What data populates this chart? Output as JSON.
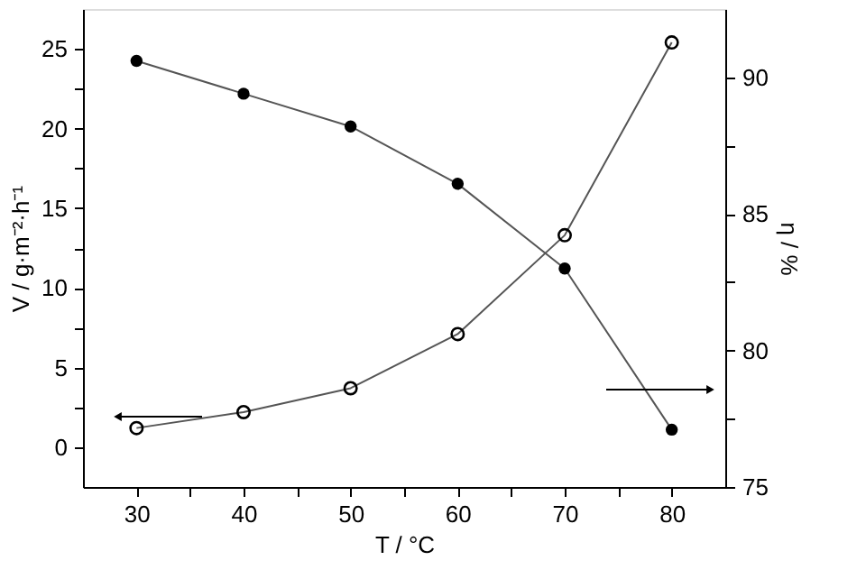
{
  "chart_data": {
    "type": "line",
    "xlabel": "T / °C",
    "ylabel": "V / g·m⁻²·h⁻¹",
    "y2label": "η / %",
    "x": [
      30,
      40,
      50,
      60,
      70,
      80
    ],
    "series": [
      {
        "color": "#000000",
        "marker": "circle",
        "values": [
          1.2,
          2.2,
          3.7,
          7.1,
          13.3,
          25.4
        ]
      },
      {
        "color": "#000000",
        "marker": "circle",
        "axis": "y2",
        "values": [
          90.6,
          89.4,
          88.2,
          86.1,
          83.0,
          77.1
        ]
      }
    ],
    "xlim": [
      25,
      85
    ],
    "xticks": [
      30,
      {
        "value": 35,
        "label": null
      },
      40,
      {
        "value": 45,
        "label": null
      },
      50,
      {
        "value": 55,
        "label": null
      },
      60,
      {
        "value": 65,
        "label": null
      },
      70,
      {
        "value": 75,
        "label": null
      },
      80
    ],
    "ylim": [
      -2.5,
      27.5
    ],
    "yticks": [
      0,
      {
        "value": 2.5,
        "label": null
      },
      5,
      {
        "value": 7.5,
        "label": null
      },
      10,
      {
        "value": 12.5,
        "label": null
      },
      15,
      {
        "value": 17.5,
        "label": null
      },
      20,
      {
        "value": 22.5,
        "label": null
      },
      25
    ],
    "y2lim": [
      75,
      92.5
    ],
    "y2ticks": [
      75,
      {
        "value": 77.5,
        "label": null
      },
      80,
      {
        "value": 82.5,
        "label": null
      },
      85,
      {
        "value": 87.5,
        "label": null
      },
      90
    ],
    "grid": false,
    "line_style": "solid"
  }
}
